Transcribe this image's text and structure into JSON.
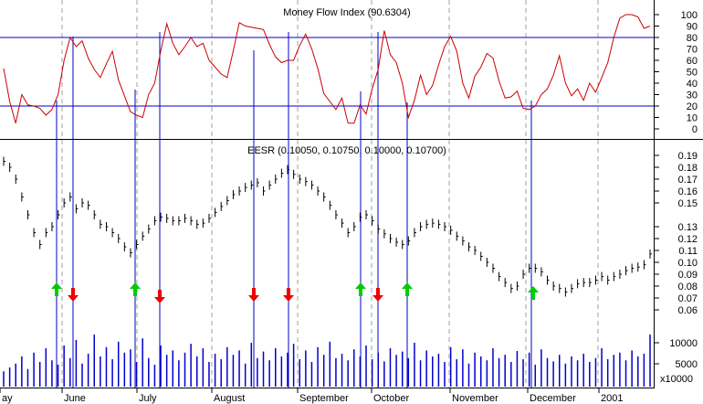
{
  "chart_data": [
    {
      "type": "line",
      "title": "Money Flow Index (90.6304)",
      "ylim": [
        -5,
        107
      ],
      "y_ticks": [
        "100",
        "90",
        "80",
        "70",
        "60",
        "50",
        "40",
        "30",
        "20",
        "10",
        "0"
      ],
      "y_tick_values": [
        100,
        90,
        80,
        70,
        60,
        50,
        40,
        30,
        20,
        10,
        0
      ],
      "reference_lines": [
        80,
        20
      ],
      "series": [
        {
          "values": [
            53,
            24,
            5,
            30,
            21,
            20,
            18,
            12,
            17,
            30,
            60,
            80,
            72,
            77,
            62,
            52,
            45,
            57,
            68,
            43,
            29,
            15,
            12,
            10,
            30,
            40,
            68,
            92,
            75,
            65,
            72,
            80,
            72,
            75,
            60,
            54,
            48,
            45,
            68,
            93,
            90,
            89,
            88,
            87,
            74,
            63,
            58,
            60,
            60,
            73,
            83,
            70,
            53,
            31,
            24,
            17,
            27,
            5,
            5,
            21,
            13,
            35,
            52,
            86,
            65,
            58,
            40,
            10,
            25,
            47,
            30,
            38,
            56,
            72,
            81,
            68,
            40,
            27,
            46,
            54,
            66,
            62,
            42,
            27,
            28,
            33,
            18,
            17,
            20,
            30,
            35,
            47,
            64,
            40,
            29,
            35,
            25,
            40,
            32,
            45,
            58,
            80,
            97,
            100,
            100,
            98,
            88,
            90
          ]
        }
      ]
    },
    {
      "type": "bar",
      "title": "EESR (0.10050, 0.10750, 0.10000, 0.10700)",
      "ylim": [
        0.053,
        0.197
      ],
      "y_ticks": [
        "0.19",
        "0.18",
        "0.17",
        "0.16",
        "0.15",
        "0.13",
        "0.12",
        "0.11",
        "0.10",
        "0.09",
        "0.08",
        "0.07",
        "0.06"
      ],
      "y_tick_values": [
        0.19,
        0.18,
        0.17,
        0.16,
        0.15,
        0.13,
        0.12,
        0.11,
        0.1,
        0.09,
        0.08,
        0.07,
        0.06
      ],
      "series": [
        {
          "values": [
            0.185,
            0.18,
            0.17,
            0.155,
            0.14,
            0.125,
            0.115,
            0.125,
            0.13,
            0.14,
            0.15,
            0.155,
            0.145,
            0.15,
            0.148,
            0.14,
            0.132,
            0.13,
            0.125,
            0.12,
            0.113,
            0.108,
            0.115,
            0.122,
            0.128,
            0.135,
            0.138,
            0.137,
            0.135,
            0.135,
            0.137,
            0.135,
            0.132,
            0.133,
            0.137,
            0.142,
            0.147,
            0.152,
            0.157,
            0.16,
            0.163,
            0.165,
            0.167,
            0.16,
            0.165,
            0.17,
            0.175,
            0.178,
            0.174,
            0.17,
            0.168,
            0.165,
            0.16,
            0.155,
            0.148,
            0.14,
            0.133,
            0.125,
            0.13,
            0.138,
            0.14,
            0.135,
            0.128,
            0.124,
            0.12,
            0.117,
            0.115,
            0.118,
            0.125,
            0.13,
            0.132,
            0.133,
            0.132,
            0.13,
            0.127,
            0.122,
            0.118,
            0.113,
            0.11,
            0.105,
            0.1,
            0.095,
            0.088,
            0.083,
            0.078,
            0.08,
            0.09,
            0.095,
            0.095,
            0.092,
            0.085,
            0.08,
            0.078,
            0.075,
            0.078,
            0.082,
            0.083,
            0.083,
            0.085,
            0.088,
            0.085,
            0.088,
            0.09,
            0.093,
            0.095,
            0.096,
            0.098,
            0.107
          ]
        }
      ],
      "annotations": {
        "buy_arrows": 6,
        "sell_arrows": 6
      }
    },
    {
      "type": "bar",
      "y_ticks": [
        "10000",
        "5000"
      ],
      "y_tick_values": [
        10000,
        5000
      ],
      "unit_label": "x10000",
      "series": [
        {
          "values": [
            0.28,
            0.35,
            0.42,
            0.55,
            0.32,
            0.62,
            0.45,
            0.7,
            0.48,
            0.4,
            0.75,
            0.52,
            0.85,
            0.42,
            0.6,
            0.95,
            0.55,
            0.72,
            0.5,
            0.82,
            0.62,
            0.68,
            0.45,
            0.88,
            0.52,
            0.4,
            0.75,
            0.58,
            0.66,
            0.48,
            0.62,
            0.78,
            0.55,
            0.7,
            0.45,
            0.6,
            0.5,
            0.72,
            0.58,
            0.66,
            0.42,
            0.8,
            0.52,
            0.64,
            0.48,
            0.7,
            0.55,
            0.62,
            0.78,
            0.5,
            0.66,
            0.45,
            0.72,
            0.58,
            0.82,
            0.52,
            0.6,
            0.48,
            0.68,
            0.55,
            0.75,
            0.5,
            0.62,
            0.46,
            0.7,
            0.58,
            0.64,
            0.52,
            0.8,
            0.48,
            0.66,
            0.55,
            0.6,
            0.45,
            0.72,
            0.5,
            0.68,
            0.42,
            0.62,
            0.55,
            0.48,
            0.7,
            0.52,
            0.58,
            0.45,
            0.65,
            0.5,
            0.62,
            0.4,
            0.68,
            0.52,
            0.46,
            0.58,
            0.42,
            0.55,
            0.48,
            0.6,
            0.45,
            0.52,
            0.7,
            0.5,
            0.58,
            0.62,
            0.48,
            0.66,
            0.55,
            0.6,
            0.95
          ]
        }
      ]
    }
  ],
  "x_axis": {
    "labels": [
      "ay",
      "June",
      "July",
      "August",
      "September",
      "October",
      "November",
      "December",
      "2001"
    ]
  },
  "colors": {
    "mfi_line": "#cc0000",
    "reference_line": "#0000cc",
    "signal_line": "#0000cc",
    "price_bar": "#000000",
    "volume_bar": "#0000cc",
    "buy_arrow": "#00cc00",
    "sell_arrow": "#ee0000",
    "month_grid": "#a0a0a0",
    "frame": "#000000"
  }
}
